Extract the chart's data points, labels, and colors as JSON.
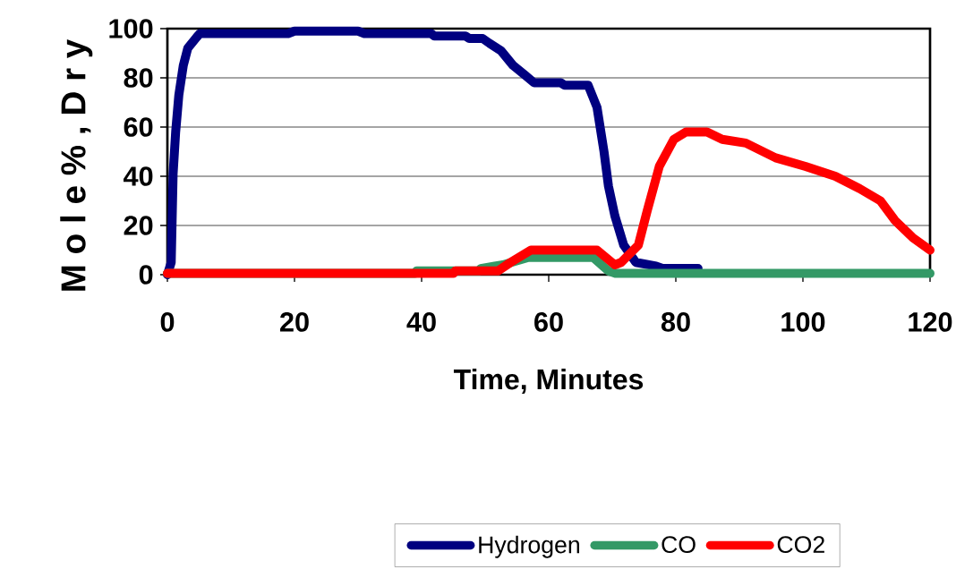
{
  "chart_data": {
    "type": "line",
    "xlabel": "Time, Minutes",
    "ylabel": "M o l e % , D r y",
    "xlim": [
      0,
      120
    ],
    "ylim": [
      0,
      100
    ],
    "xticks": [
      0,
      20,
      40,
      60,
      80,
      100,
      120
    ],
    "yticks": [
      0,
      20,
      40,
      60,
      80,
      100
    ],
    "grid": "y",
    "legend": "bottom",
    "line_style": "solid",
    "series": [
      {
        "name": "Hydrogen",
        "color": "#000080",
        "x": [
          0,
          0.6,
          0.9,
          1.3,
          1.8,
          2.5,
          3.2,
          4.6,
          5.1,
          19,
          20,
          30,
          31,
          41.5,
          42,
          46.9,
          47.5,
          49.6,
          50.7,
          52.5,
          54.4,
          56.3,
          57.7,
          61.9,
          62.5,
          66.2,
          67.6,
          68.7,
          69.4,
          70.4,
          71.8,
          73.7,
          76.9,
          78,
          83.5
        ],
        "values": [
          0,
          5,
          41,
          58,
          73,
          85,
          92,
          96.5,
          98,
          98,
          99,
          99,
          98,
          98,
          97,
          97,
          96,
          96,
          94,
          91,
          85,
          81,
          78,
          78,
          77,
          77,
          68,
          50,
          36,
          24,
          12,
          5,
          3.5,
          2.5,
          2.5
        ]
      },
      {
        "name": "CO",
        "color": "#339966",
        "x": [
          0,
          38.9,
          39.2,
          49,
          49.3,
          51.5,
          52.8,
          56.8,
          67,
          69.4,
          70.5,
          120
        ],
        "values": [
          0.5,
          0.5,
          1.5,
          1.5,
          2.5,
          3.5,
          4,
          7,
          7,
          1.5,
          0.5,
          0.5
        ]
      },
      {
        "name": "CO2",
        "color": "#ff0000",
        "x": [
          0,
          45,
          45.3,
          52,
          54,
          57.2,
          67.6,
          70.4,
          71.4,
          74.1,
          75.5,
          77.4,
          79.7,
          81.6,
          84.9,
          87.3,
          91,
          95.7,
          100.4,
          105.1,
          108.9,
          112.2,
          114.5,
          117.3,
          120
        ],
        "values": [
          0.5,
          0.5,
          1.5,
          1.5,
          5,
          10,
          10,
          4,
          5,
          12,
          26,
          44,
          55,
          58,
          58,
          55,
          53.5,
          47.5,
          44,
          40,
          35,
          30,
          22,
          15,
          10
        ]
      }
    ]
  }
}
